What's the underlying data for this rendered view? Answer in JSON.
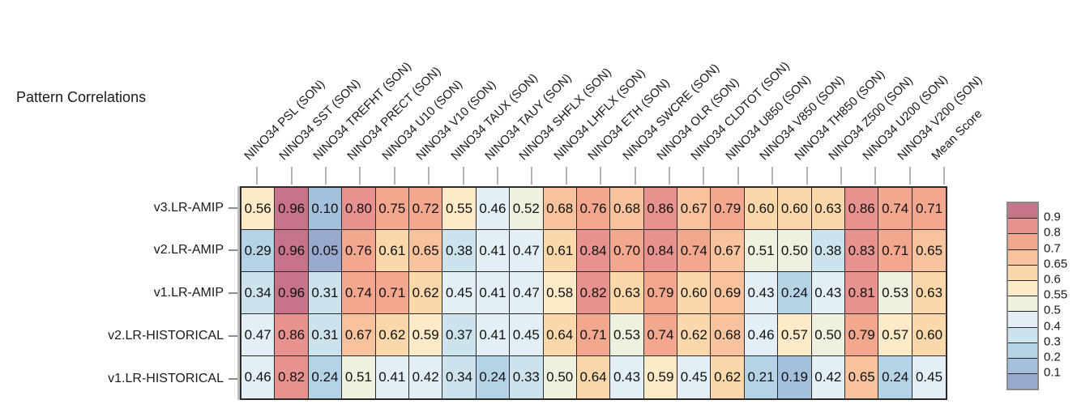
{
  "title": "Pattern Correlations",
  "chart_data": {
    "type": "heatmap",
    "title": "Pattern Correlations",
    "columns": [
      "NINO34 PSL (SON)",
      "NINO34 SST (SON)",
      "NINO34 TREFHT (SON)",
      "NINO34 PRECT (SON)",
      "NINO34 U10 (SON)",
      "NINO34 V10 (SON)",
      "NINO34 TAUX (SON)",
      "NINO34 TAUY (SON)",
      "NINO34 SHFLX (SON)",
      "NINO34 LHFLX (SON)",
      "NINO34 ETH (SON)",
      "NINO34 SWCRE (SON)",
      "NINO34 OLR (SON)",
      "NINO34 CLDTOT (SON)",
      "NINO34 U850 (SON)",
      "NINO34 V850 (SON)",
      "NINO34 TH850 (SON)",
      "NINO34 Z500 (SON)",
      "NINO34 U200 (SON)",
      "NINO34 V200 (SON)",
      "Mean Score"
    ],
    "rows": [
      "v3.LR-AMIP",
      "v2.LR-AMIP",
      "v1.LR-AMIP",
      "v2.LR-HISTORICAL",
      "v1.LR-HISTORICAL"
    ],
    "values": [
      [
        0.56,
        0.96,
        0.1,
        0.8,
        0.75,
        0.72,
        0.55,
        0.46,
        0.52,
        0.68,
        0.76,
        0.68,
        0.86,
        0.67,
        0.79,
        0.6,
        0.6,
        0.63,
        0.86,
        0.74,
        0.71
      ],
      [
        0.29,
        0.96,
        0.05,
        0.76,
        0.61,
        0.65,
        0.38,
        0.41,
        0.47,
        0.61,
        0.84,
        0.7,
        0.84,
        0.74,
        0.67,
        0.51,
        0.5,
        0.38,
        0.83,
        0.71,
        0.65
      ],
      [
        0.34,
        0.96,
        0.31,
        0.74,
        0.71,
        0.62,
        0.45,
        0.41,
        0.47,
        0.58,
        0.82,
        0.63,
        0.79,
        0.6,
        0.69,
        0.43,
        0.24,
        0.43,
        0.81,
        0.53,
        0.63
      ],
      [
        0.47,
        0.86,
        0.31,
        0.67,
        0.62,
        0.59,
        0.37,
        0.41,
        0.45,
        0.64,
        0.71,
        0.53,
        0.74,
        0.62,
        0.68,
        0.46,
        0.57,
        0.5,
        0.79,
        0.57,
        0.6
      ],
      [
        0.46,
        0.82,
        0.24,
        0.51,
        0.41,
        0.42,
        0.34,
        0.24,
        0.33,
        0.5,
        0.64,
        0.43,
        0.59,
        0.45,
        0.62,
        0.21,
        0.19,
        0.42,
        0.65,
        0.24,
        0.45
      ]
    ],
    "value_format_decimals": 2,
    "colorbar": {
      "tick_labels": [
        "0.9",
        "0.8",
        "0.7",
        "0.65",
        "0.6",
        "0.55",
        "0.5",
        "0.4",
        "0.3",
        "0.2",
        "0.1"
      ],
      "bands_top_to_bottom": [
        {
          "min": 0.9,
          "color": "#c77389"
        },
        {
          "min": 0.8,
          "color": "#e8928f"
        },
        {
          "min": 0.7,
          "color": "#f3a78e"
        },
        {
          "min": 0.65,
          "color": "#f8c29c"
        },
        {
          "min": 0.6,
          "color": "#fbd7a9"
        },
        {
          "min": 0.55,
          "color": "#fdeac6"
        },
        {
          "min": 0.5,
          "color": "#f0f0df"
        },
        {
          "min": 0.4,
          "color": "#e3eff4"
        },
        {
          "min": 0.3,
          "color": "#cce3ee"
        },
        {
          "min": 0.2,
          "color": "#b5d3e7"
        },
        {
          "min": 0.1,
          "color": "#a3c0dc"
        },
        {
          "min": -9,
          "color": "#99a8cf"
        }
      ]
    },
    "layout": {
      "grid": "off",
      "legend_position": "right",
      "column_labels_rotated_deg": 45
    }
  }
}
